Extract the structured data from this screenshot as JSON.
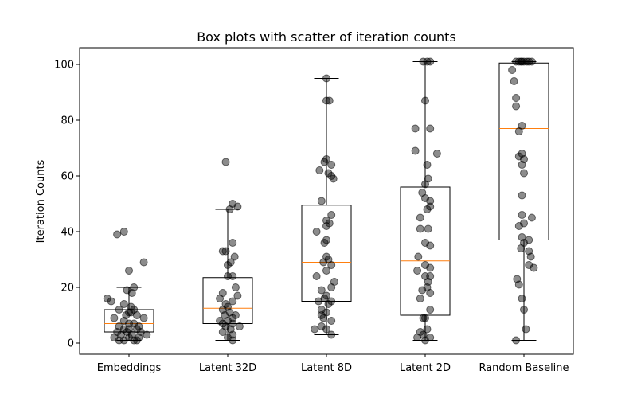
{
  "chart_data": {
    "type": "box",
    "title": "Box plots with scatter of iteration counts",
    "xlabel": "",
    "ylabel": "Iteration Counts",
    "ylim": [
      -4,
      106
    ],
    "yticks": [
      0,
      20,
      40,
      60,
      80,
      100
    ],
    "grid": false,
    "colors": {
      "box": "#000000",
      "median": "#ff7f0e",
      "points": "#000000"
    },
    "categories": [
      "Embeddings",
      "Latent 32D",
      "Latent 8D",
      "Latent 2D",
      "Random Baseline"
    ],
    "boxes": [
      {
        "whisker_low": 1,
        "q1": 4,
        "median": 7,
        "q3": 12,
        "whisker_high": 20
      },
      {
        "whisker_low": 1,
        "q1": 7,
        "median": 12.5,
        "q3": 23.5,
        "whisker_high": 48
      },
      {
        "whisker_low": 3,
        "q1": 15,
        "median": 29,
        "q3": 49.5,
        "whisker_high": 95
      },
      {
        "whisker_low": 1,
        "q1": 10,
        "median": 29.5,
        "q3": 56,
        "whisker_high": 101
      },
      {
        "whisker_low": 1,
        "q1": 37,
        "median": 77,
        "q3": 100.5,
        "whisker_high": 101
      }
    ],
    "points": [
      [
        {
          "dx": -0.05,
          "y": 40
        },
        {
          "dx": -0.12,
          "y": 39
        },
        {
          "dx": 0.15,
          "y": 29
        },
        {
          "dx": 0.0,
          "y": 26
        },
        {
          "dx": 0.05,
          "y": 20
        },
        {
          "dx": -0.02,
          "y": 19
        },
        {
          "dx": 0.03,
          "y": 18
        },
        {
          "dx": -0.22,
          "y": 16
        },
        {
          "dx": -0.18,
          "y": 15
        },
        {
          "dx": -0.05,
          "y": 14
        },
        {
          "dx": 0.02,
          "y": 13
        },
        {
          "dx": -0.1,
          "y": 12
        },
        {
          "dx": 0.05,
          "y": 12
        },
        {
          "dx": 0.0,
          "y": 11
        },
        {
          "dx": -0.03,
          "y": 10
        },
        {
          "dx": 0.08,
          "y": 10
        },
        {
          "dx": -0.15,
          "y": 9
        },
        {
          "dx": 0.15,
          "y": 9
        },
        {
          "dx": -0.05,
          "y": 8
        },
        {
          "dx": 0.05,
          "y": 7
        },
        {
          "dx": -0.1,
          "y": 6
        },
        {
          "dx": 0.1,
          "y": 6
        },
        {
          "dx": 0.0,
          "y": 5
        },
        {
          "dx": -0.05,
          "y": 5
        },
        {
          "dx": 0.08,
          "y": 5
        },
        {
          "dx": -0.12,
          "y": 4
        },
        {
          "dx": 0.12,
          "y": 4
        },
        {
          "dx": -0.02,
          "y": 4
        },
        {
          "dx": 0.03,
          "y": 3
        },
        {
          "dx": -0.08,
          "y": 3
        },
        {
          "dx": 0.18,
          "y": 3
        },
        {
          "dx": -0.15,
          "y": 2
        },
        {
          "dx": 0.1,
          "y": 2
        },
        {
          "dx": 0.0,
          "y": 2
        },
        {
          "dx": -0.05,
          "y": 1
        },
        {
          "dx": 0.05,
          "y": 1
        },
        {
          "dx": -0.1,
          "y": 1
        },
        {
          "dx": 0.08,
          "y": 1
        },
        {
          "dx": 0.0,
          "y": 7
        },
        {
          "dx": 0.02,
          "y": 11
        }
      ],
      [
        {
          "dx": -0.02,
          "y": 65
        },
        {
          "dx": 0.05,
          "y": 50
        },
        {
          "dx": 0.1,
          "y": 49
        },
        {
          "dx": 0.02,
          "y": 48
        },
        {
          "dx": 0.05,
          "y": 36
        },
        {
          "dx": -0.05,
          "y": 33
        },
        {
          "dx": -0.02,
          "y": 33
        },
        {
          "dx": 0.07,
          "y": 31
        },
        {
          "dx": 0.03,
          "y": 29
        },
        {
          "dx": 0.0,
          "y": 28
        },
        {
          "dx": 0.05,
          "y": 24
        },
        {
          "dx": 0.0,
          "y": 24
        },
        {
          "dx": 0.08,
          "y": 20
        },
        {
          "dx": -0.05,
          "y": 18
        },
        {
          "dx": 0.1,
          "y": 17
        },
        {
          "dx": -0.08,
          "y": 16
        },
        {
          "dx": 0.05,
          "y": 15
        },
        {
          "dx": -0.02,
          "y": 14
        },
        {
          "dx": 0.0,
          "y": 13
        },
        {
          "dx": -0.05,
          "y": 12
        },
        {
          "dx": 0.02,
          "y": 11
        },
        {
          "dx": 0.08,
          "y": 10
        },
        {
          "dx": -0.03,
          "y": 10
        },
        {
          "dx": 0.05,
          "y": 9
        },
        {
          "dx": -0.08,
          "y": 8
        },
        {
          "dx": 0.0,
          "y": 8
        },
        {
          "dx": 0.05,
          "y": 7
        },
        {
          "dx": -0.05,
          "y": 7
        },
        {
          "dx": -0.02,
          "y": 6
        },
        {
          "dx": 0.12,
          "y": 6
        },
        {
          "dx": 0.03,
          "y": 5
        },
        {
          "dx": -0.05,
          "y": 4
        },
        {
          "dx": 0.05,
          "y": 3
        },
        {
          "dx": 0.0,
          "y": 2
        },
        {
          "dx": 0.05,
          "y": 1
        }
      ],
      [
        {
          "dx": 0.0,
          "y": 95
        },
        {
          "dx": 0.03,
          "y": 87
        },
        {
          "dx": 0.0,
          "y": 87
        },
        {
          "dx": 0.0,
          "y": 66
        },
        {
          "dx": -0.02,
          "y": 65
        },
        {
          "dx": 0.05,
          "y": 64
        },
        {
          "dx": -0.07,
          "y": 62
        },
        {
          "dx": 0.02,
          "y": 61
        },
        {
          "dx": 0.05,
          "y": 60
        },
        {
          "dx": 0.07,
          "y": 59
        },
        {
          "dx": -0.05,
          "y": 51
        },
        {
          "dx": 0.05,
          "y": 46
        },
        {
          "dx": 0.0,
          "y": 44
        },
        {
          "dx": 0.03,
          "y": 43
        },
        {
          "dx": 0.0,
          "y": 42
        },
        {
          "dx": -0.1,
          "y": 40
        },
        {
          "dx": 0.0,
          "y": 37
        },
        {
          "dx": -0.02,
          "y": 36
        },
        {
          "dx": 0.0,
          "y": 31
        },
        {
          "dx": 0.02,
          "y": 30
        },
        {
          "dx": -0.03,
          "y": 29
        },
        {
          "dx": 0.05,
          "y": 28
        },
        {
          "dx": 0.0,
          "y": 26
        },
        {
          "dx": -0.1,
          "y": 24
        },
        {
          "dx": 0.08,
          "y": 22
        },
        {
          "dx": 0.05,
          "y": 20
        },
        {
          "dx": -0.05,
          "y": 19
        },
        {
          "dx": 0.0,
          "y": 17
        },
        {
          "dx": -0.02,
          "y": 16
        },
        {
          "dx": 0.05,
          "y": 15
        },
        {
          "dx": -0.08,
          "y": 15
        },
        {
          "dx": 0.02,
          "y": 14
        },
        {
          "dx": -0.05,
          "y": 12
        },
        {
          "dx": 0.0,
          "y": 11
        },
        {
          "dx": -0.05,
          "y": 10
        },
        {
          "dx": -0.03,
          "y": 9
        },
        {
          "dx": 0.05,
          "y": 8
        },
        {
          "dx": -0.05,
          "y": 6
        },
        {
          "dx": 0.0,
          "y": 5
        },
        {
          "dx": -0.12,
          "y": 5
        },
        {
          "dx": 0.05,
          "y": 3
        }
      ],
      [
        {
          "dx": -0.02,
          "y": 101
        },
        {
          "dx": 0.02,
          "y": 101
        },
        {
          "dx": 0.05,
          "y": 101
        },
        {
          "dx": 0.0,
          "y": 87
        },
        {
          "dx": -0.1,
          "y": 77
        },
        {
          "dx": 0.05,
          "y": 77
        },
        {
          "dx": -0.1,
          "y": 69
        },
        {
          "dx": 0.12,
          "y": 68
        },
        {
          "dx": 0.02,
          "y": 64
        },
        {
          "dx": 0.03,
          "y": 59
        },
        {
          "dx": 0.0,
          "y": 57
        },
        {
          "dx": -0.03,
          "y": 54
        },
        {
          "dx": 0.0,
          "y": 52
        },
        {
          "dx": 0.05,
          "y": 51
        },
        {
          "dx": 0.05,
          "y": 49
        },
        {
          "dx": 0.02,
          "y": 48
        },
        {
          "dx": -0.05,
          "y": 45
        },
        {
          "dx": -0.05,
          "y": 41
        },
        {
          "dx": 0.03,
          "y": 41
        },
        {
          "dx": 0.0,
          "y": 36
        },
        {
          "dx": 0.05,
          "y": 35
        },
        {
          "dx": -0.07,
          "y": 31
        },
        {
          "dx": 0.0,
          "y": 28
        },
        {
          "dx": 0.05,
          "y": 27
        },
        {
          "dx": -0.08,
          "y": 26
        },
        {
          "dx": 0.0,
          "y": 24
        },
        {
          "dx": 0.05,
          "y": 24
        },
        {
          "dx": 0.03,
          "y": 22
        },
        {
          "dx": 0.02,
          "y": 20
        },
        {
          "dx": -0.03,
          "y": 19
        },
        {
          "dx": 0.05,
          "y": 18
        },
        {
          "dx": -0.05,
          "y": 16
        },
        {
          "dx": 0.05,
          "y": 12
        },
        {
          "dx": 0.0,
          "y": 9
        },
        {
          "dx": 0.02,
          "y": 5
        },
        {
          "dx": -0.05,
          "y": 4
        },
        {
          "dx": -0.02,
          "y": 3
        },
        {
          "dx": 0.05,
          "y": 2
        },
        {
          "dx": -0.08,
          "y": 2
        },
        {
          "dx": 0.0,
          "y": 1
        },
        {
          "dx": -0.02,
          "y": 9
        }
      ],
      [
        {
          "dx": -0.08,
          "y": 101
        },
        {
          "dx": -0.05,
          "y": 101
        },
        {
          "dx": -0.03,
          "y": 101
        },
        {
          "dx": 0.0,
          "y": 101
        },
        {
          "dx": 0.03,
          "y": 101
        },
        {
          "dx": 0.05,
          "y": 101
        },
        {
          "dx": 0.08,
          "y": 101
        },
        {
          "dx": -0.02,
          "y": 101
        },
        {
          "dx": -0.12,
          "y": 98
        },
        {
          "dx": -0.1,
          "y": 94
        },
        {
          "dx": -0.08,
          "y": 88
        },
        {
          "dx": -0.08,
          "y": 85
        },
        {
          "dx": -0.02,
          "y": 78
        },
        {
          "dx": -0.05,
          "y": 76
        },
        {
          "dx": -0.02,
          "y": 68
        },
        {
          "dx": -0.05,
          "y": 67
        },
        {
          "dx": 0.0,
          "y": 66
        },
        {
          "dx": -0.02,
          "y": 64
        },
        {
          "dx": 0.0,
          "y": 61
        },
        {
          "dx": -0.02,
          "y": 53
        },
        {
          "dx": -0.02,
          "y": 46
        },
        {
          "dx": 0.08,
          "y": 45
        },
        {
          "dx": 0.0,
          "y": 43
        },
        {
          "dx": -0.05,
          "y": 42
        },
        {
          "dx": -0.02,
          "y": 38
        },
        {
          "dx": 0.05,
          "y": 37
        },
        {
          "dx": 0.0,
          "y": 36
        },
        {
          "dx": -0.03,
          "y": 34
        },
        {
          "dx": 0.05,
          "y": 33
        },
        {
          "dx": 0.07,
          "y": 31
        },
        {
          "dx": 0.05,
          "y": 28
        },
        {
          "dx": 0.1,
          "y": 27
        },
        {
          "dx": -0.07,
          "y": 23
        },
        {
          "dx": -0.05,
          "y": 21
        },
        {
          "dx": -0.02,
          "y": 16
        },
        {
          "dx": 0.0,
          "y": 12
        },
        {
          "dx": 0.02,
          "y": 5
        },
        {
          "dx": -0.08,
          "y": 1
        }
      ]
    ]
  }
}
